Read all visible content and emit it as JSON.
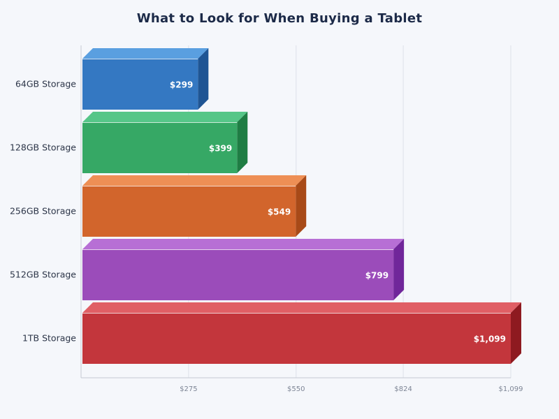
{
  "chart_data": {
    "type": "bar",
    "orientation": "horizontal",
    "style": "3d",
    "title": "What to Look for When Buying a Tablet",
    "categories": [
      "64GB Storage",
      "128GB Storage",
      "256GB Storage",
      "512GB Storage",
      "1TB Storage"
    ],
    "values": [
      299,
      399,
      549,
      799,
      1099
    ],
    "data_labels": [
      "$299",
      "$399",
      "$549",
      "$799",
      "$1,099"
    ],
    "colors": [
      "#3478c2",
      "#36a865",
      "#d2652c",
      "#9b4cba",
      "#c3363c"
    ],
    "top_colors": [
      "#5a9fe0",
      "#56c688",
      "#ee8f55",
      "#b76fd5",
      "#e05f65"
    ],
    "side_colors": [
      "#1f5594",
      "#1f7d44",
      "#a84a18",
      "#70269a",
      "#8e1a20"
    ],
    "xticks": [
      275,
      550,
      824,
      1099
    ],
    "xtick_labels": [
      "$275",
      "$550",
      "$824",
      "$1,099"
    ],
    "xlim": [
      0,
      1099
    ],
    "xlabel": "",
    "ylabel": "",
    "grid": true
  }
}
